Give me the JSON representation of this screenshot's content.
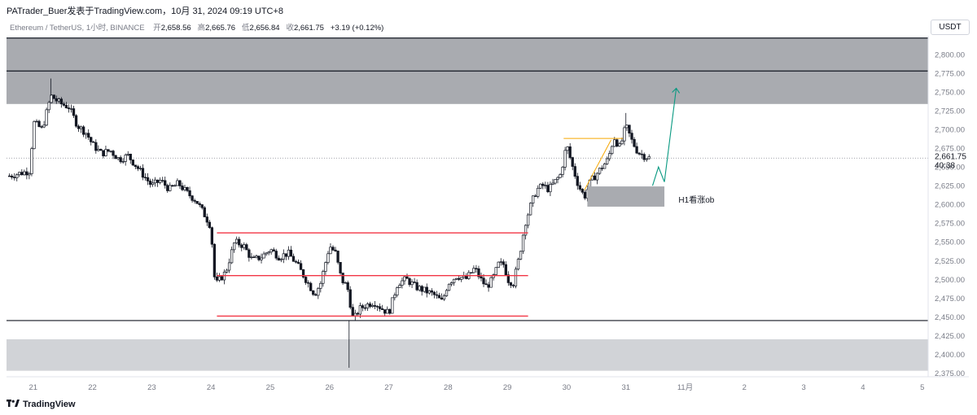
{
  "header": {
    "publisher": "PATrader_Buer发表于TradingView.com，10月 31, 2024 09:19 UTC+8"
  },
  "symbol_bar": {
    "symbol": "Ethereum / TetherUS, 1小时, BINANCE",
    "open_label": "开",
    "open": "2,658.56",
    "high_label": "高",
    "high": "2,665.76",
    "low_label": "低",
    "low": "2,656.84",
    "close_label": "收",
    "close": "2,661.75",
    "change": "+3.19 (+0.12%)"
  },
  "currency_button": "USDT",
  "brand": "TradingView",
  "colors": {
    "up": "#131722",
    "down": "#131722",
    "zone_dark": "#a9abb0",
    "zone_light": "#d1d3d7",
    "range_line": "#f23645",
    "arrow": "#089981",
    "trend": "#f7a600",
    "level": "#131722"
  },
  "chart_data": {
    "type": "candlestick",
    "symbol": "ETHUSDT",
    "timeframe": "1h",
    "ylim": [
      2370,
      2825
    ],
    "y_ticks": [
      2375,
      2400,
      2425,
      2450,
      2475,
      2500,
      2525,
      2550,
      2575,
      2600,
      2625,
      2650,
      2675,
      2700,
      2725,
      2750,
      2775,
      2800
    ],
    "y_tick_labels": [
      "2,375.00",
      "2,400.00",
      "2,425.00",
      "2,450.00",
      "2,475.00",
      "2,500.00",
      "2,525.00",
      "2,550.00",
      "2,575.00",
      "2,600.00",
      "2,625.00",
      "2,650.00",
      "2,675.00",
      "2,700.00",
      "2,725.00",
      "2,750.00",
      "2,775.00",
      "2,800.00"
    ],
    "x_ticks": [
      "21",
      "22",
      "23",
      "24",
      "25",
      "26",
      "27",
      "28",
      "29",
      "30",
      "31",
      "11月",
      "2",
      "3",
      "4",
      "5"
    ],
    "x_range_days": [
      20.55,
      5.1
    ],
    "last_price": 2661.75,
    "last_price_label": "2,661.75",
    "countdown": "40:38",
    "close_path": [
      [
        20.6,
        2638
      ],
      [
        20.8,
        2642
      ],
      [
        20.95,
        2645
      ],
      [
        21.0,
        2710
      ],
      [
        21.15,
        2700
      ],
      [
        21.3,
        2745
      ],
      [
        21.45,
        2735
      ],
      [
        21.6,
        2730
      ],
      [
        21.75,
        2705
      ],
      [
        21.9,
        2695
      ],
      [
        22.0,
        2680
      ],
      [
        22.15,
        2668
      ],
      [
        22.3,
        2672
      ],
      [
        22.45,
        2660
      ],
      [
        22.6,
        2665
      ],
      [
        22.75,
        2650
      ],
      [
        22.9,
        2635
      ],
      [
        23.0,
        2625
      ],
      [
        23.15,
        2632
      ],
      [
        23.3,
        2620
      ],
      [
        23.45,
        2628
      ],
      [
        23.6,
        2615
      ],
      [
        23.75,
        2605
      ],
      [
        23.9,
        2585
      ],
      [
        24.0,
        2570
      ],
      [
        24.05,
        2505
      ],
      [
        24.1,
        2495
      ],
      [
        24.25,
        2510
      ],
      [
        24.4,
        2550
      ],
      [
        24.55,
        2545
      ],
      [
        24.7,
        2525
      ],
      [
        24.85,
        2530
      ],
      [
        25.0,
        2540
      ],
      [
        25.15,
        2530
      ],
      [
        25.3,
        2535
      ],
      [
        25.45,
        2520
      ],
      [
        25.6,
        2500
      ],
      [
        25.75,
        2480
      ],
      [
        25.85,
        2495
      ],
      [
        26.0,
        2545
      ],
      [
        26.1,
        2535
      ],
      [
        26.2,
        2500
      ],
      [
        26.3,
        2490
      ],
      [
        26.4,
        2445
      ],
      [
        26.5,
        2460
      ],
      [
        26.6,
        2465
      ],
      [
        26.75,
        2470
      ],
      [
        26.9,
        2460
      ],
      [
        27.0,
        2455
      ],
      [
        27.15,
        2495
      ],
      [
        27.3,
        2500
      ],
      [
        27.45,
        2490
      ],
      [
        27.6,
        2485
      ],
      [
        27.75,
        2480
      ],
      [
        27.9,
        2470
      ],
      [
        28.0,
        2495
      ],
      [
        28.15,
        2505
      ],
      [
        28.3,
        2500
      ],
      [
        28.45,
        2515
      ],
      [
        28.55,
        2500
      ],
      [
        28.65,
        2490
      ],
      [
        28.75,
        2500
      ],
      [
        28.85,
        2520
      ],
      [
        28.95,
        2520
      ],
      [
        29.0,
        2500
      ],
      [
        29.1,
        2495
      ],
      [
        29.2,
        2530
      ],
      [
        29.3,
        2575
      ],
      [
        29.4,
        2600
      ],
      [
        29.5,
        2620
      ],
      [
        29.6,
        2625
      ],
      [
        29.7,
        2620
      ],
      [
        29.8,
        2630
      ],
      [
        29.9,
        2640
      ],
      [
        30.0,
        2680
      ],
      [
        30.1,
        2650
      ],
      [
        30.2,
        2625
      ],
      [
        30.3,
        2610
      ],
      [
        30.4,
        2630
      ],
      [
        30.55,
        2645
      ],
      [
        30.7,
        2660
      ],
      [
        30.8,
        2690
      ],
      [
        30.9,
        2675
      ],
      [
        31.0,
        2705
      ],
      [
        31.1,
        2685
      ],
      [
        31.2,
        2670
      ],
      [
        31.3,
        2665
      ],
      [
        31.4,
        2662
      ]
    ],
    "annotations": {
      "supply_zone": [
        2734,
        2778
      ],
      "supply_upper_zone": [
        2778,
        2822
      ],
      "demand_zone": [
        2378,
        2420
      ],
      "support_level": 2445,
      "resistance_levels": [
        2778,
        2822
      ],
      "range_lines": [
        2562,
        2505,
        2451
      ],
      "range_start_day": 24.1,
      "range_end_day": 29.35,
      "ob_zone": {
        "y": [
          2597,
          2624
        ],
        "x_days": [
          30.35,
          31.65
        ],
        "label": "H1看涨ob"
      },
      "projection_arrow": [
        [
          31.45,
          2625
        ],
        [
          31.55,
          2650
        ],
        [
          31.65,
          2630
        ],
        [
          31.85,
          2755
        ]
      ],
      "trendline": [
        [
          30.3,
          2619
        ],
        [
          30.75,
          2686
        ]
      ],
      "hline_short": {
        "y": 2688,
        "x_days": [
          29.95,
          30.95
        ]
      }
    }
  }
}
